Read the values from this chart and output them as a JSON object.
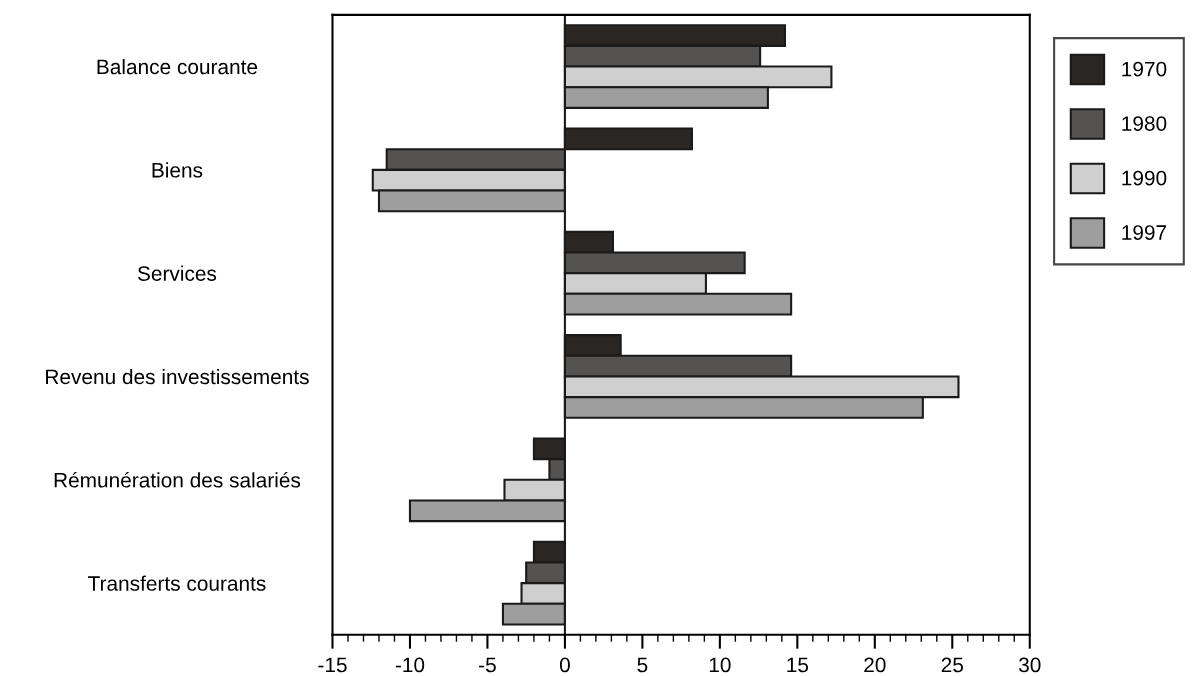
{
  "chart_data": {
    "type": "bar",
    "orientation": "horizontal",
    "categories": [
      "Balance courante",
      "Biens",
      "Services",
      "Revenu des investissements",
      "Rémunération des salariés",
      "Transferts courants"
    ],
    "series": [
      {
        "name": "1970",
        "color": "#2a2624",
        "values": [
          14.2,
          8.2,
          3.1,
          3.6,
          -2.0,
          -2.0
        ]
      },
      {
        "name": "1980",
        "color": "#555352",
        "values": [
          12.6,
          -11.5,
          11.6,
          14.6,
          -1.0,
          -2.5
        ]
      },
      {
        "name": "1990",
        "color": "#cfcfcf",
        "values": [
          17.2,
          -12.4,
          9.1,
          25.4,
          -3.9,
          -2.8
        ]
      },
      {
        "name": "1997",
        "color": "#9e9e9e",
        "values": [
          13.1,
          -12.0,
          14.6,
          23.1,
          -10.0,
          -4.0
        ]
      }
    ],
    "xlim": [
      -15,
      30
    ],
    "xticks": [
      -15,
      -10,
      -5,
      0,
      5,
      10,
      15,
      20,
      25,
      30
    ],
    "ref_lines": [
      {
        "axis": "x",
        "value": 0
      }
    ],
    "grid": false,
    "legend": "right"
  }
}
